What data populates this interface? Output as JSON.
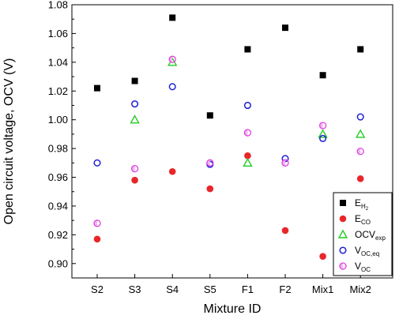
{
  "chart_data": {
    "type": "scatter",
    "title": "",
    "xlabel": "Mixture ID",
    "ylabel": "Open circuit voltage, OCV (V)",
    "categories": [
      "S2",
      "S3",
      "S4",
      "S5",
      "F1",
      "F2",
      "Mix1",
      "Mix2"
    ],
    "ylim": [
      0.89,
      1.08
    ],
    "yticks": [
      0.9,
      0.92,
      0.94,
      0.96,
      0.98,
      1.0,
      1.02,
      1.04,
      1.06,
      1.08
    ],
    "ytick_labels": [
      "0.90",
      "0.92",
      "0.94",
      "0.96",
      "0.98",
      "1.00",
      "1.02",
      "1.04",
      "1.06",
      "1.08"
    ],
    "grid": false,
    "legend_position": "bottom-right",
    "series": [
      {
        "name": "E",
        "sub": "H",
        "subsub": "2",
        "marker": "square",
        "color": "#000000",
        "fill": true,
        "values": [
          1.022,
          1.027,
          1.071,
          1.003,
          1.049,
          1.064,
          1.031,
          1.049
        ]
      },
      {
        "name": "E",
        "sub": "CO",
        "subsub": "",
        "marker": "circle",
        "color": "#e8262a",
        "fill": true,
        "values": [
          0.917,
          0.958,
          0.964,
          0.952,
          0.975,
          0.923,
          0.905,
          0.959
        ]
      },
      {
        "name": "OCV",
        "sub": "exp",
        "subsub": "",
        "marker": "triangle",
        "color": "#22cc22",
        "fill": false,
        "values": [
          null,
          1.0,
          1.04,
          null,
          0.97,
          null,
          0.99,
          0.99
        ]
      },
      {
        "name": "V",
        "sub": "OC,eq",
        "subsub": "",
        "marker": "circle-open",
        "color": "#1f1fd6",
        "fill": false,
        "values": [
          0.97,
          1.011,
          1.023,
          0.969,
          1.01,
          0.973,
          0.987,
          1.002
        ]
      },
      {
        "name": "V",
        "sub": "OC",
        "subsub": "",
        "marker": "circle-half",
        "color": "#e040e0",
        "fill": false,
        "values": [
          0.928,
          0.966,
          1.042,
          0.97,
          0.991,
          0.97,
          0.996,
          0.978
        ]
      }
    ]
  }
}
